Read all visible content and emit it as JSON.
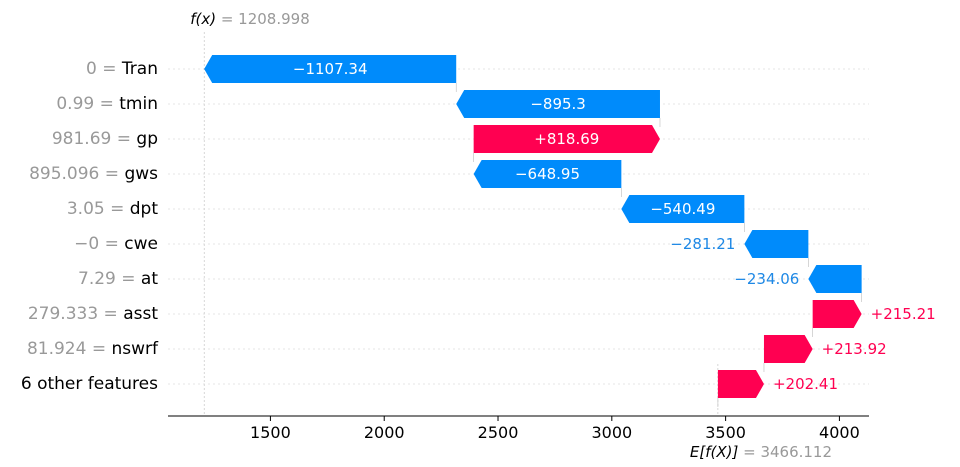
{
  "chart_data": {
    "type": "waterfall",
    "fx": {
      "symbol": "f(x)",
      "value": "1208.998",
      "raw": 1208.998
    },
    "ex": {
      "symbol": "E[f(X)]",
      "value": "3466.112",
      "raw": 3466.112
    },
    "xlim": [
      1050,
      4130
    ],
    "xticks": [
      1500,
      2000,
      2500,
      3000,
      3500,
      4000
    ],
    "features": [
      {
        "value": "0",
        "name": "Tran",
        "label": "−1107.34",
        "start": 2316.34,
        "end": 1209.0
      },
      {
        "value": "0.99",
        "name": "tmin",
        "label": "−895.3",
        "start": 3211.64,
        "end": 2316.34
      },
      {
        "value": "981.69",
        "name": "gp",
        "label": "+818.69",
        "start": 2392.95,
        "end": 3211.64
      },
      {
        "value": "895.096",
        "name": "gws",
        "label": "−648.95",
        "start": 3041.9,
        "end": 2392.95
      },
      {
        "value": "3.05",
        "name": "dpt",
        "label": "−540.49",
        "start": 3582.39,
        "end": 3041.9
      },
      {
        "value": "−0",
        "name": "cwe",
        "label": "−281.21",
        "start": 3863.6,
        "end": 3582.39
      },
      {
        "value": "7.29",
        "name": "at",
        "label": "−234.06",
        "start": 4097.66,
        "end": 3863.6
      },
      {
        "value": "279.333",
        "name": "asst",
        "label": "+215.21",
        "start": 3882.45,
        "end": 4097.66
      },
      {
        "value": "81.924",
        "name": "nswrf",
        "label": "+213.92",
        "start": 3668.53,
        "end": 3882.45
      },
      {
        "value": "",
        "name": "6 other features",
        "label": "+202.41",
        "start": 3466.12,
        "end": 3668.53
      }
    ],
    "colors": {
      "positive": "#ff0051",
      "negative": "#008bfb",
      "label_pos": "#ff0051",
      "label_neg": "#1e88e5"
    }
  }
}
